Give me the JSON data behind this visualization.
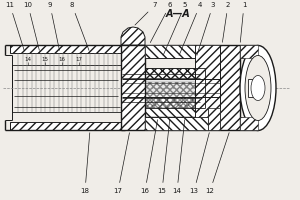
{
  "bg_color": "#f0ede8",
  "line_color": "#1a1a1a",
  "title_text": "A—A"
}
